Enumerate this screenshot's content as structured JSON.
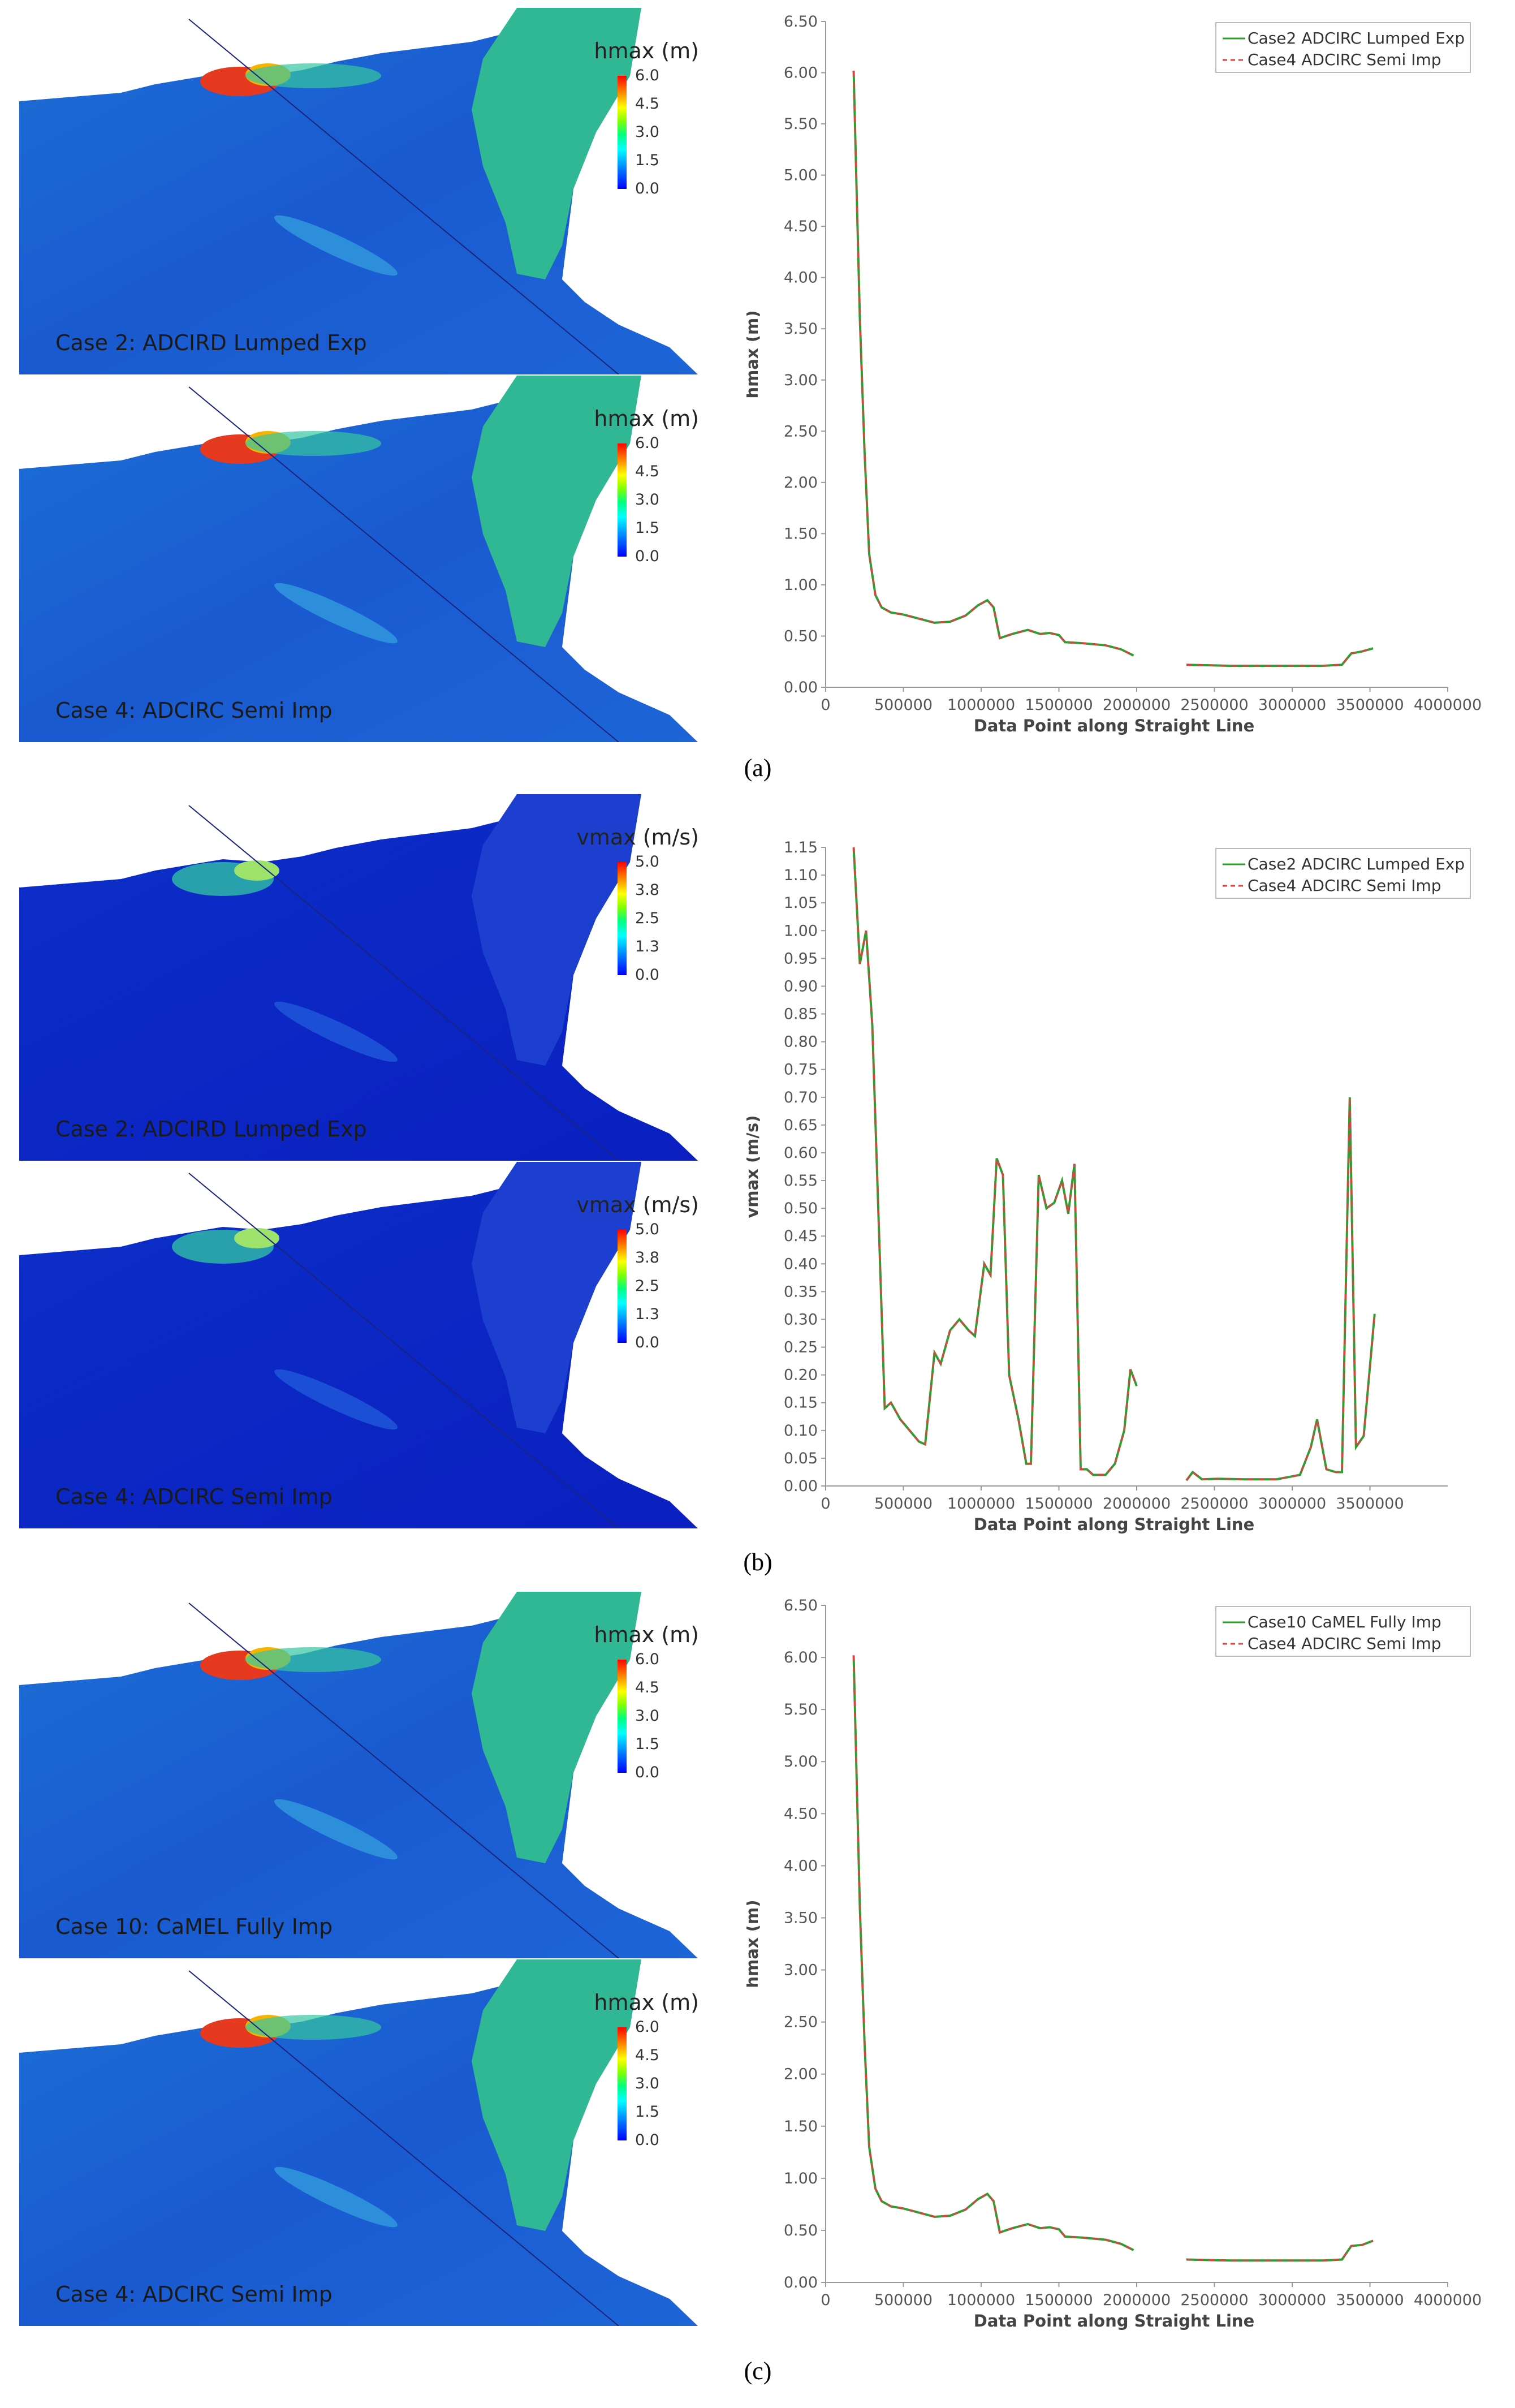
{
  "panels": [
    {
      "label": "(a)",
      "maps": [
        {
          "title": "hmax (m)",
          "colorbar_ticks": [
            "6.0",
            "4.5",
            "3.0",
            "1.5",
            "0.0"
          ],
          "caption": "Case 2: ADCIRD Lumped Exp",
          "variant": "h"
        },
        {
          "title": "hmax (m)",
          "colorbar_ticks": [
            "6.0",
            "4.5",
            "3.0",
            "1.5",
            "0.0"
          ],
          "caption": "Case 4: ADCIRC Semi Imp",
          "variant": "h"
        }
      ]
    },
    {
      "label": "(b)",
      "maps": [
        {
          "title": "vmax (m/s)",
          "colorbar_ticks": [
            "5.0",
            "3.8",
            "2.5",
            "1.3",
            "0.0"
          ],
          "caption": "Case 2: ADCIRD Lumped Exp",
          "variant": "v"
        },
        {
          "title": "vmax (m/s)",
          "colorbar_ticks": [
            "5.0",
            "3.8",
            "2.5",
            "1.3",
            "0.0"
          ],
          "caption": "Case 4: ADCIRC Semi Imp",
          "variant": "v"
        }
      ]
    },
    {
      "label": "(c)",
      "maps": [
        {
          "title": "hmax (m)",
          "colorbar_ticks": [
            "6.0",
            "4.5",
            "3.0",
            "1.5",
            "0.0"
          ],
          "caption": "Case 10: CaMEL Fully Imp",
          "variant": "h"
        },
        {
          "title": "hmax (m)",
          "colorbar_ticks": [
            "6.0",
            "4.5",
            "3.0",
            "1.5",
            "0.0"
          ],
          "caption": "Case 4: ADCIRC Semi Imp",
          "variant": "h"
        }
      ]
    }
  ],
  "colors": {
    "series_solid": "#2e9e2e",
    "series_dashed": "#d64545",
    "map_line": "#1a237e"
  },
  "chart_data": [
    {
      "type": "line",
      "xlabel": "Data Point along Straight Line",
      "ylabel": "hmax (m)",
      "xlim": [
        0,
        4000000
      ],
      "ylim": [
        0,
        6.5
      ],
      "xticks": [
        "0",
        "500000",
        "1000000",
        "1500000",
        "2000000",
        "2500000",
        "3000000",
        "3500000",
        "4000000"
      ],
      "yticks": [
        "0.00",
        "0.50",
        "1.00",
        "1.50",
        "2.00",
        "2.50",
        "3.00",
        "3.50",
        "4.00",
        "4.50",
        "5.00",
        "5.50",
        "6.00",
        "6.50"
      ],
      "legend_position": "top-right",
      "legend": [
        "Case2 ADCIRC Lumped Exp",
        "Case4 ADCIRC Semi Imp"
      ],
      "segments": [
        [
          [
            180000,
            6.02
          ],
          [
            200000,
            4.8
          ],
          [
            220000,
            3.6
          ],
          [
            250000,
            2.3
          ],
          [
            280000,
            1.3
          ],
          [
            320000,
            0.9
          ],
          [
            360000,
            0.78
          ],
          [
            420000,
            0.73
          ],
          [
            500000,
            0.71
          ],
          [
            600000,
            0.67
          ],
          [
            700000,
            0.63
          ],
          [
            800000,
            0.64
          ],
          [
            900000,
            0.7
          ],
          [
            980000,
            0.8
          ],
          [
            1040000,
            0.85
          ],
          [
            1080000,
            0.78
          ],
          [
            1120000,
            0.48
          ],
          [
            1200000,
            0.52
          ],
          [
            1300000,
            0.56
          ],
          [
            1380000,
            0.52
          ],
          [
            1440000,
            0.53
          ],
          [
            1500000,
            0.51
          ],
          [
            1540000,
            0.44
          ],
          [
            1650000,
            0.43
          ],
          [
            1800000,
            0.41
          ],
          [
            1900000,
            0.37
          ],
          [
            1980000,
            0.31
          ]
        ],
        [
          [
            2320000,
            0.22
          ],
          [
            2600000,
            0.21
          ],
          [
            2900000,
            0.21
          ],
          [
            3200000,
            0.21
          ],
          [
            3320000,
            0.22
          ],
          [
            3380000,
            0.33
          ],
          [
            3450000,
            0.35
          ],
          [
            3520000,
            0.38
          ]
        ]
      ]
    },
    {
      "type": "line",
      "xlabel": "Data Point along Straight Line",
      "ylabel": "vmax (m/s)",
      "xlim": [
        0,
        4000000
      ],
      "ylim": [
        0,
        1.15
      ],
      "xticks": [
        "0",
        "500000",
        "1000000",
        "1500000",
        "2000000",
        "2500000",
        "3000000",
        "3500000"
      ],
      "yticks": [
        "0.00",
        "0.05",
        "0.10",
        "0.15",
        "0.20",
        "0.25",
        "0.30",
        "0.35",
        "0.40",
        "0.45",
        "0.50",
        "0.55",
        "0.60",
        "0.65",
        "0.70",
        "0.75",
        "0.80",
        "0.85",
        "0.90",
        "0.95",
        "1.00",
        "1.05",
        "1.10",
        "1.15"
      ],
      "legend_position": "top-right",
      "legend": [
        "Case2 ADCIRC Lumped Exp",
        "Case4 ADCIRC Semi Imp"
      ],
      "segments": [
        [
          [
            180000,
            1.15
          ],
          [
            220000,
            0.94
          ],
          [
            260000,
            1.0
          ],
          [
            300000,
            0.83
          ],
          [
            380000,
            0.14
          ],
          [
            420000,
            0.15
          ],
          [
            480000,
            0.12
          ],
          [
            540000,
            0.1
          ],
          [
            600000,
            0.08
          ],
          [
            640000,
            0.075
          ],
          [
            700000,
            0.24
          ],
          [
            740000,
            0.22
          ],
          [
            800000,
            0.28
          ],
          [
            860000,
            0.3
          ],
          [
            920000,
            0.28
          ],
          [
            960000,
            0.27
          ],
          [
            1020000,
            0.4
          ],
          [
            1060000,
            0.38
          ],
          [
            1100000,
            0.59
          ],
          [
            1140000,
            0.56
          ],
          [
            1180000,
            0.2
          ],
          [
            1240000,
            0.12
          ],
          [
            1290000,
            0.04
          ],
          [
            1320000,
            0.04
          ],
          [
            1370000,
            0.56
          ],
          [
            1420000,
            0.5
          ],
          [
            1470000,
            0.51
          ],
          [
            1520000,
            0.55
          ],
          [
            1560000,
            0.49
          ],
          [
            1600000,
            0.58
          ],
          [
            1640000,
            0.03
          ],
          [
            1680000,
            0.03
          ],
          [
            1720000,
            0.02
          ],
          [
            1800000,
            0.02
          ],
          [
            1860000,
            0.04
          ],
          [
            1920000,
            0.1
          ],
          [
            1960000,
            0.21
          ],
          [
            2000000,
            0.18
          ]
        ],
        [
          [
            2320000,
            0.01
          ],
          [
            2360000,
            0.025
          ],
          [
            2420000,
            0.012
          ],
          [
            2520000,
            0.013
          ],
          [
            2700000,
            0.012
          ],
          [
            2900000,
            0.012
          ],
          [
            3050000,
            0.02
          ],
          [
            3120000,
            0.07
          ],
          [
            3160000,
            0.12
          ],
          [
            3220000,
            0.03
          ],
          [
            3280000,
            0.025
          ],
          [
            3320000,
            0.025
          ],
          [
            3370000,
            0.7
          ],
          [
            3410000,
            0.07
          ],
          [
            3460000,
            0.09
          ],
          [
            3530000,
            0.31
          ]
        ]
      ]
    },
    {
      "type": "line",
      "xlabel": "Data Point along Straight Line",
      "ylabel": "hmax (m)",
      "xlim": [
        0,
        4000000
      ],
      "ylim": [
        0,
        6.5
      ],
      "xticks": [
        "0",
        "500000",
        "1000000",
        "1500000",
        "2000000",
        "2500000",
        "3000000",
        "3500000",
        "4000000"
      ],
      "yticks": [
        "0.00",
        "0.50",
        "1.00",
        "1.50",
        "2.00",
        "2.50",
        "3.00",
        "3.50",
        "4.00",
        "4.50",
        "5.00",
        "5.50",
        "6.00",
        "6.50"
      ],
      "legend_position": "top-right",
      "legend": [
        "Case10 CaMEL Fully Imp",
        "Case4 ADCIRC Semi Imp"
      ],
      "segments": [
        [
          [
            180000,
            6.02
          ],
          [
            200000,
            4.8
          ],
          [
            220000,
            3.6
          ],
          [
            250000,
            2.3
          ],
          [
            280000,
            1.3
          ],
          [
            320000,
            0.9
          ],
          [
            360000,
            0.78
          ],
          [
            420000,
            0.73
          ],
          [
            500000,
            0.71
          ],
          [
            600000,
            0.67
          ],
          [
            700000,
            0.63
          ],
          [
            800000,
            0.64
          ],
          [
            900000,
            0.7
          ],
          [
            980000,
            0.8
          ],
          [
            1040000,
            0.85
          ],
          [
            1080000,
            0.78
          ],
          [
            1120000,
            0.48
          ],
          [
            1200000,
            0.52
          ],
          [
            1300000,
            0.56
          ],
          [
            1380000,
            0.52
          ],
          [
            1440000,
            0.53
          ],
          [
            1500000,
            0.51
          ],
          [
            1540000,
            0.44
          ],
          [
            1650000,
            0.43
          ],
          [
            1800000,
            0.41
          ],
          [
            1900000,
            0.37
          ],
          [
            1980000,
            0.31
          ]
        ],
        [
          [
            2320000,
            0.22
          ],
          [
            2600000,
            0.21
          ],
          [
            2900000,
            0.21
          ],
          [
            3200000,
            0.21
          ],
          [
            3320000,
            0.22
          ],
          [
            3380000,
            0.35
          ],
          [
            3450000,
            0.36
          ],
          [
            3520000,
            0.4
          ]
        ]
      ]
    }
  ]
}
